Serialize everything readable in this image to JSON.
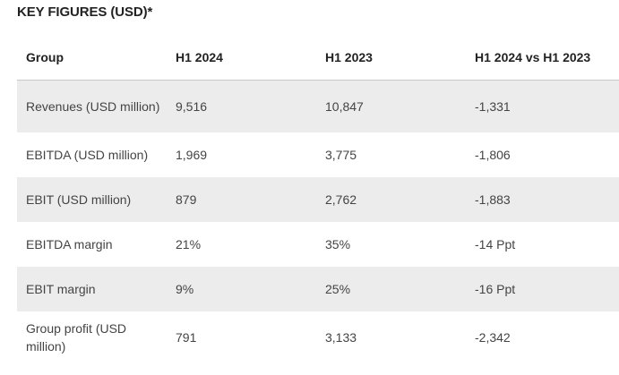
{
  "heading": "KEY FIGURES (USD)*",
  "table": {
    "headers": [
      "Group",
      "H1 2024",
      "H1 2023",
      "H1 2024 vs H1 2023"
    ],
    "rows": [
      [
        "Revenues (USD million)",
        "9,516",
        "10,847",
        "-1,331"
      ],
      [
        "EBITDA (USD million)",
        "1,969",
        "3,775",
        "-1,806"
      ],
      [
        "EBIT (USD million)",
        "879",
        "2,762",
        "-1,883"
      ],
      [
        "EBITDA margin",
        "21%",
        "35%",
        "-14 Ppt"
      ],
      [
        "EBIT margin",
        "9%",
        "25%",
        "-16 Ppt"
      ],
      [
        "Group profit (USD million)",
        "791",
        "3,133",
        "-2,342"
      ]
    ]
  }
}
